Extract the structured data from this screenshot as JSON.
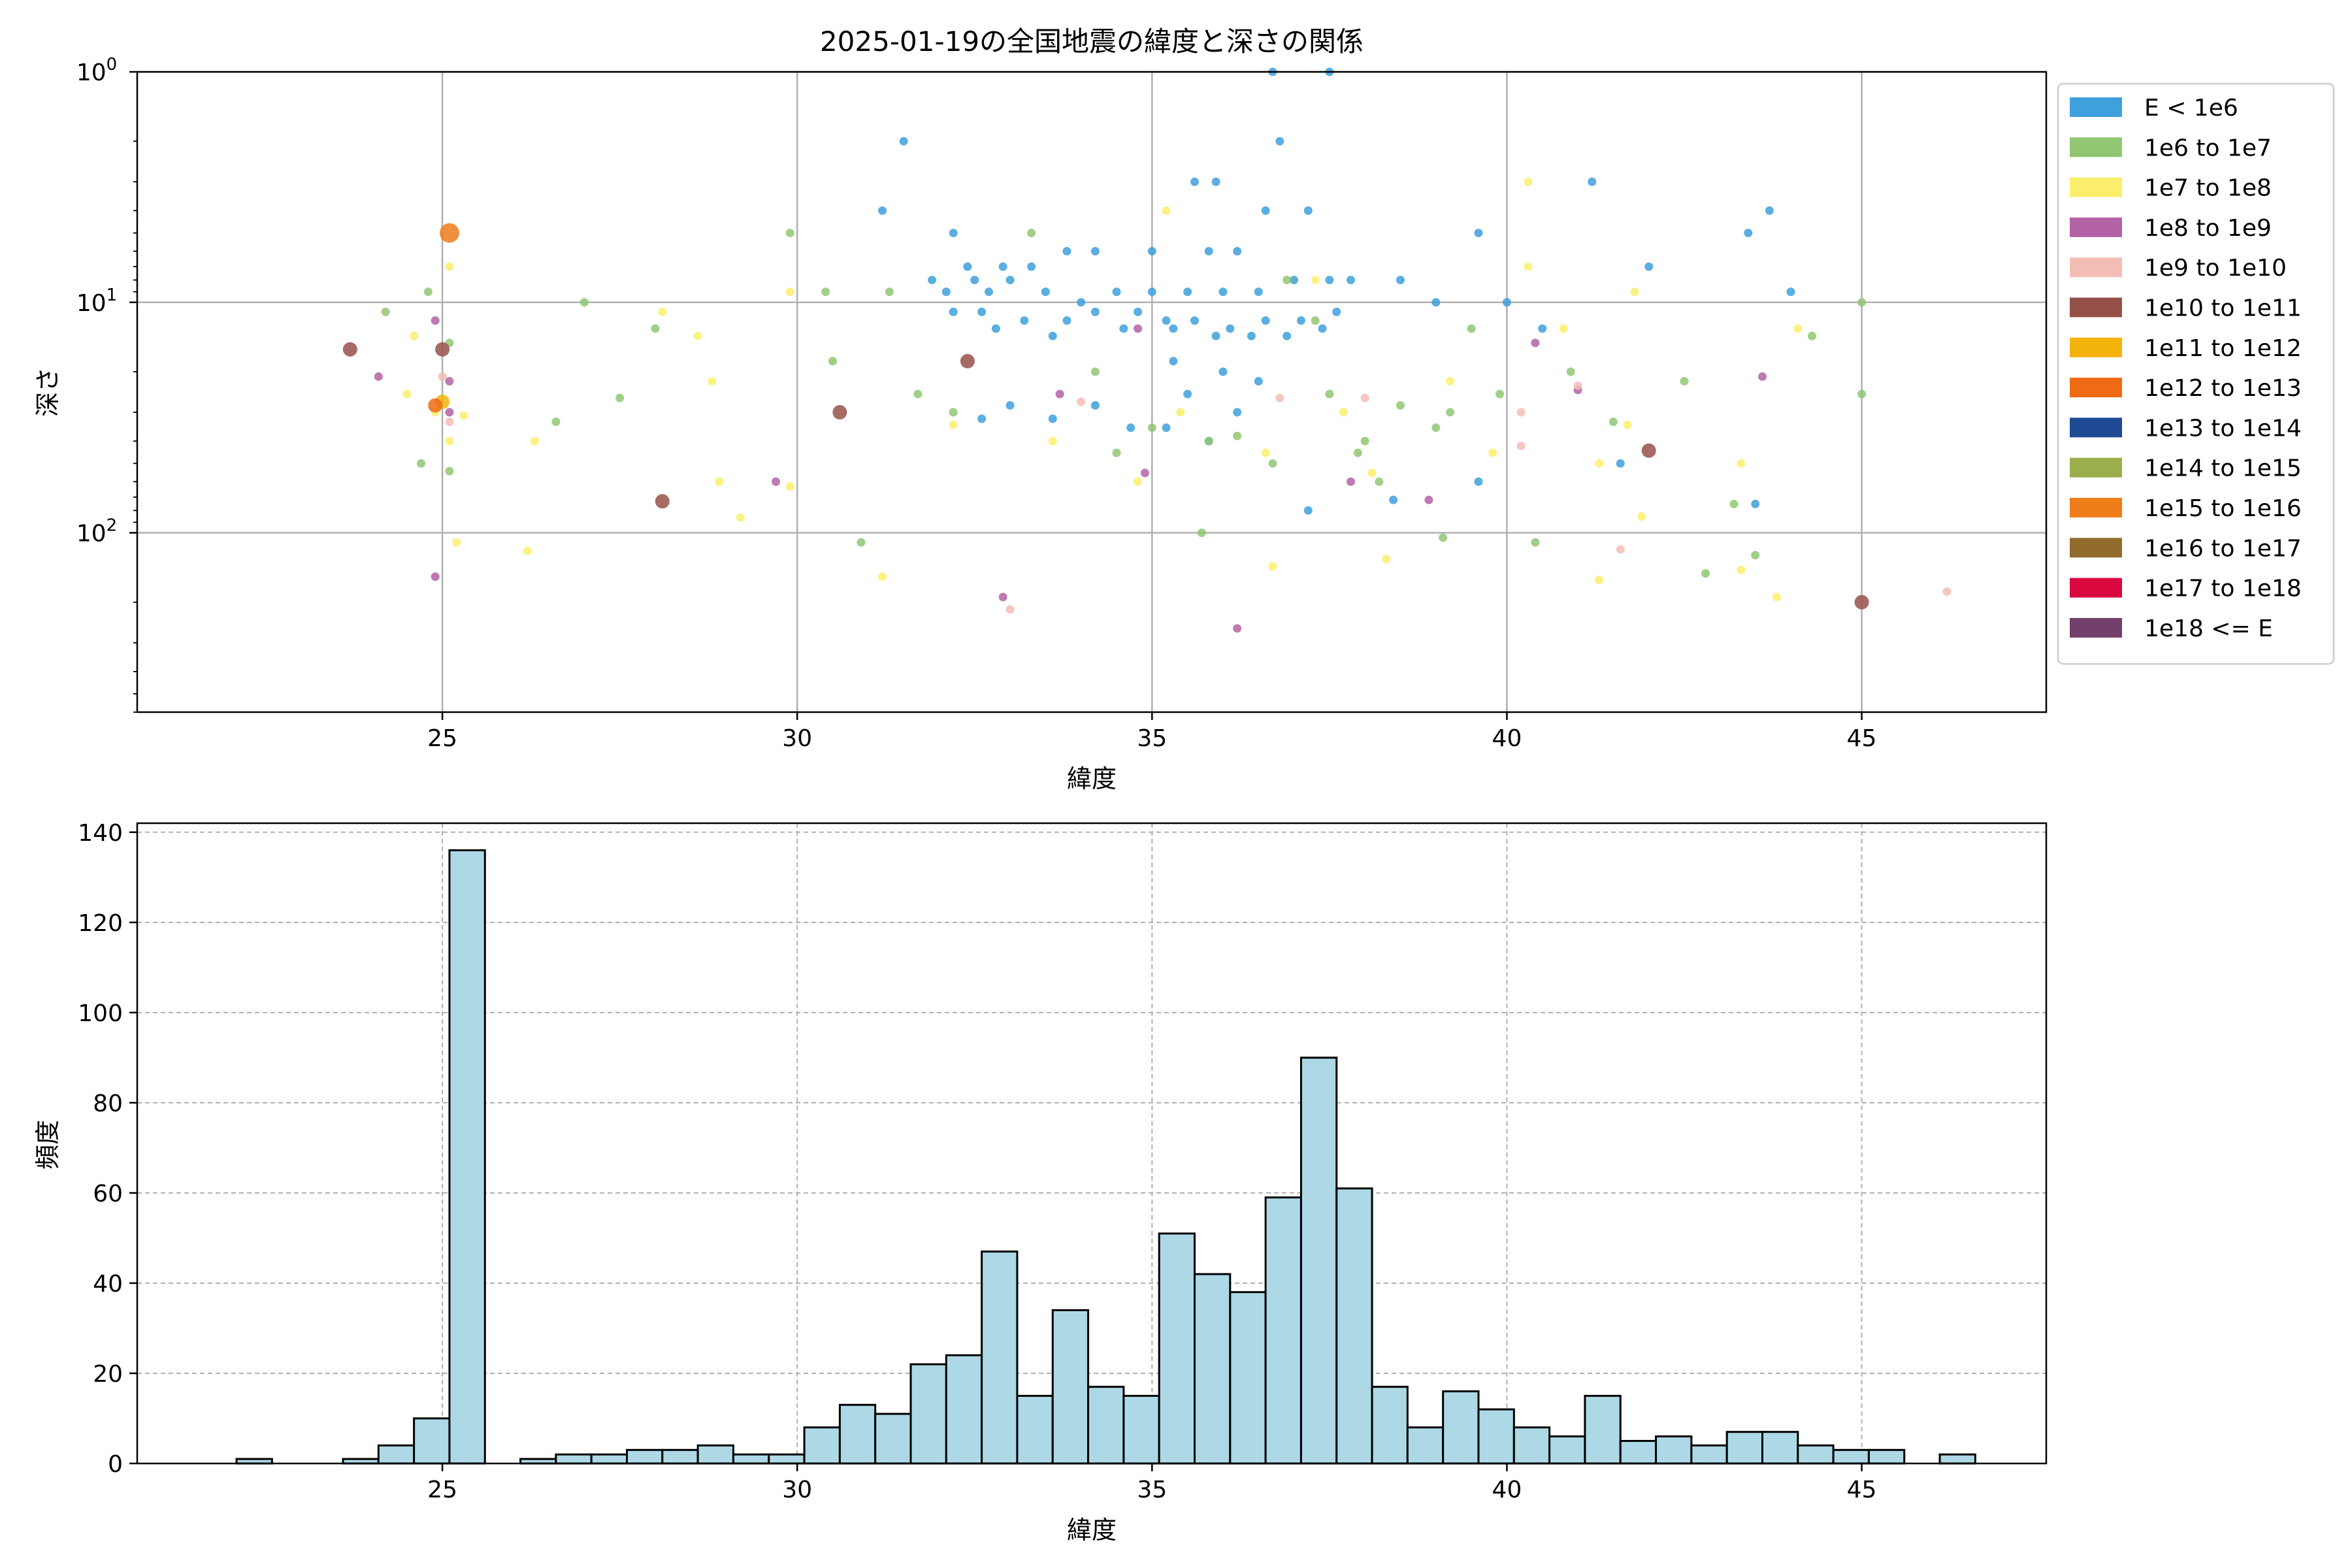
{
  "chart_data": [
    {
      "type": "scatter",
      "title": "2025-01-19の全国地震の緯度と深さの関係",
      "xlabel": "緯度",
      "ylabel": "深さ",
      "xlim": [
        20.7,
        47.6
      ],
      "ylim": [
        1,
        600
      ],
      "y_scale": "log",
      "y_inverted": true,
      "grid": true,
      "x_ticks": [
        25,
        30,
        35,
        40,
        45
      ],
      "y_ticks": [
        1,
        10,
        100
      ],
      "legend_position": "outside-right",
      "legend": [
        {
          "label": "E < 1e6",
          "color": "#3ea0dc"
        },
        {
          "label": "1e6 to 1e7",
          "color": "#91c773"
        },
        {
          "label": "1e7 to 1e8",
          "color": "#fbee6c"
        },
        {
          "label": "1e8 to 1e9",
          "color": "#b462a6"
        },
        {
          "label": "1e9 to 1e10",
          "color": "#f4bdb6"
        },
        {
          "label": "1e10 to 1e11",
          "color": "#955149"
        },
        {
          "label": "1e11 to 1e12",
          "color": "#f5b40c"
        },
        {
          "label": "1e12 to 1e13",
          "color": "#ef6a12"
        },
        {
          "label": "1e13 to 1e14",
          "color": "#1d4a93"
        },
        {
          "label": "1e14 to 1e15",
          "color": "#9aae4c"
        },
        {
          "label": "1e15 to 1e16",
          "color": "#ef7d1a"
        },
        {
          "label": "1e16 to 1e17",
          "color": "#926b2d"
        },
        {
          "label": "1e17 to 1e18",
          "color": "#d9083f"
        },
        {
          "label": "1e18 <= E",
          "color": "#723f6b"
        }
      ],
      "series": [
        {
          "name": "E < 1e6",
          "points": [
            [
              31.5,
              2
            ],
            [
              31.2,
              4
            ],
            [
              32.2,
              5
            ],
            [
              32.4,
              7
            ],
            [
              32.9,
              7
            ],
            [
              33.3,
              7
            ],
            [
              31.9,
              8
            ],
            [
              32.5,
              8
            ],
            [
              33,
              8
            ],
            [
              32.1,
              9
            ],
            [
              32.7,
              9
            ],
            [
              33.5,
              9
            ],
            [
              34,
              10
            ],
            [
              34.5,
              9
            ],
            [
              35,
              9
            ],
            [
              35.5,
              9
            ],
            [
              36,
              9
            ],
            [
              36.5,
              9
            ],
            [
              37,
              8
            ],
            [
              37.5,
              8
            ],
            [
              32.2,
              11
            ],
            [
              32.6,
              11
            ],
            [
              33.2,
              12
            ],
            [
              33.8,
              12
            ],
            [
              34.2,
              11
            ],
            [
              34.8,
              11
            ],
            [
              35.2,
              12
            ],
            [
              35.6,
              12
            ],
            [
              36.1,
              13
            ],
            [
              36.6,
              12
            ],
            [
              37.1,
              12
            ],
            [
              37.6,
              11
            ],
            [
              32.8,
              13
            ],
            [
              33.6,
              14
            ],
            [
              34.6,
              13
            ],
            [
              35.3,
              13
            ],
            [
              35.9,
              14
            ],
            [
              36.4,
              14
            ],
            [
              36.9,
              14
            ],
            [
              37.4,
              13
            ],
            [
              35.6,
              3
            ],
            [
              35.9,
              3
            ],
            [
              36.7,
              1
            ],
            [
              37.5,
              1
            ],
            [
              36.8,
              2
            ],
            [
              37.2,
              4
            ],
            [
              36.6,
              4
            ],
            [
              35.8,
              6
            ],
            [
              36.2,
              6
            ],
            [
              34.2,
              6
            ],
            [
              35,
              6
            ],
            [
              33.8,
              6
            ],
            [
              35.3,
              18
            ],
            [
              36,
              20
            ],
            [
              36.5,
              22
            ],
            [
              35.5,
              25
            ],
            [
              33,
              28
            ],
            [
              32.6,
              32
            ],
            [
              34.2,
              28
            ],
            [
              35.2,
              35
            ],
            [
              36.2,
              30
            ],
            [
              37.8,
              8
            ],
            [
              38.5,
              8
            ],
            [
              39,
              10
            ],
            [
              39.6,
              5
            ],
            [
              40,
              10
            ],
            [
              40.5,
              13
            ],
            [
              41.2,
              3
            ],
            [
              41.6,
              50
            ],
            [
              42,
              7
            ],
            [
              43.4,
              5
            ],
            [
              43.7,
              4
            ],
            [
              44,
              9
            ],
            [
              43.5,
              75
            ],
            [
              39.6,
              60
            ],
            [
              38.4,
              72
            ],
            [
              37.2,
              80
            ],
            [
              35.8,
              40
            ],
            [
              34.7,
              35
            ],
            [
              33.6,
              32
            ]
          ]
        },
        {
          "name": "1e6 to 1e7",
          "points": [
            [
              24.2,
              11
            ],
            [
              24.8,
              9
            ],
            [
              25.1,
              15
            ],
            [
              24.7,
              50
            ],
            [
              25.1,
              54
            ],
            [
              26.6,
              33
            ],
            [
              27,
              10
            ],
            [
              27.5,
              26
            ],
            [
              28,
              13
            ],
            [
              29.9,
              5
            ],
            [
              30.4,
              9
            ],
            [
              30.5,
              18
            ],
            [
              30.9,
              110
            ],
            [
              31.3,
              9
            ],
            [
              31.7,
              25
            ],
            [
              32.2,
              30
            ],
            [
              33.3,
              5
            ],
            [
              34.2,
              20
            ],
            [
              34.5,
              45
            ],
            [
              35,
              35
            ],
            [
              35.7,
              100
            ],
            [
              35.8,
              40
            ],
            [
              36.2,
              38
            ],
            [
              36.7,
              50
            ],
            [
              36.9,
              8
            ],
            [
              37.3,
              12
            ],
            [
              37.5,
              25
            ],
            [
              38,
              40
            ],
            [
              38.5,
              28
            ],
            [
              39,
              35
            ],
            [
              39.2,
              30
            ],
            [
              39.5,
              13
            ],
            [
              39.9,
              25
            ],
            [
              40.4,
              110
            ],
            [
              40.9,
              20
            ],
            [
              41.5,
              33
            ],
            [
              42.5,
              22
            ],
            [
              42.8,
              150
            ],
            [
              43.2,
              75
            ],
            [
              43.5,
              125
            ],
            [
              44.3,
              14
            ],
            [
              45,
              10
            ],
            [
              45,
              25
            ],
            [
              37.9,
              45
            ],
            [
              38.2,
              60
            ],
            [
              39.1,
              105
            ]
          ]
        },
        {
          "name": "1e7 to 1e8",
          "points": [
            [
              24.6,
              14
            ],
            [
              25.1,
              7
            ],
            [
              24.9,
              30
            ],
            [
              25.1,
              40
            ],
            [
              25.3,
              31
            ],
            [
              24.5,
              25
            ],
            [
              25.2,
              110
            ],
            [
              26.3,
              40
            ],
            [
              26.2,
              120
            ],
            [
              28.1,
              11
            ],
            [
              28.6,
              14
            ],
            [
              28.8,
              22
            ],
            [
              28.9,
              60
            ],
            [
              29.2,
              86
            ],
            [
              29.9,
              9
            ],
            [
              29.9,
              63
            ],
            [
              31.2,
              155
            ],
            [
              32.2,
              34
            ],
            [
              33.6,
              40
            ],
            [
              34.8,
              60
            ],
            [
              35.2,
              4
            ],
            [
              35.4,
              30
            ],
            [
              36.6,
              45
            ],
            [
              36.7,
              140
            ],
            [
              37.3,
              8
            ],
            [
              37.7,
              30
            ],
            [
              38.1,
              55
            ],
            [
              38.3,
              130
            ],
            [
              39.2,
              22
            ],
            [
              39.8,
              45
            ],
            [
              40.3,
              3
            ],
            [
              40.3,
              7
            ],
            [
              40.8,
              13
            ],
            [
              41.3,
              50
            ],
            [
              41.3,
              160
            ],
            [
              41.7,
              34
            ],
            [
              41.8,
              9
            ],
            [
              41.9,
              85
            ],
            [
              43.3,
              50
            ],
            [
              43.3,
              145
            ],
            [
              43.8,
              190
            ],
            [
              44.1,
              13
            ]
          ]
        },
        {
          "name": "1e8 to 1e9",
          "points": [
            [
              24.1,
              21
            ],
            [
              24.9,
              12
            ],
            [
              25.1,
              22
            ],
            [
              25.1,
              30
            ],
            [
              24.9,
              155
            ],
            [
              29.7,
              60
            ],
            [
              32.9,
              190
            ],
            [
              33.7,
              25
            ],
            [
              34.8,
              13
            ],
            [
              34.9,
              55
            ],
            [
              36.2,
              260
            ],
            [
              37.8,
              60
            ],
            [
              38.9,
              72
            ],
            [
              40.4,
              15
            ],
            [
              41,
              24
            ],
            [
              43.6,
              21
            ]
          ]
        },
        {
          "name": "1e9 to 1e10",
          "points": [
            [
              25,
              21
            ],
            [
              25.1,
              33
            ],
            [
              33,
              215
            ],
            [
              34,
              27
            ],
            [
              36.8,
              26
            ],
            [
              38,
              26
            ],
            [
              40.2,
              30
            ],
            [
              40.2,
              42
            ],
            [
              41,
              23
            ],
            [
              41.6,
              118
            ],
            [
              46.2,
              180
            ]
          ]
        },
        {
          "name": "1e10 to 1e11",
          "points": [
            [
              23.7,
              16
            ],
            [
              25,
              16
            ],
            [
              28.1,
              73
            ],
            [
              30.6,
              30
            ],
            [
              32.4,
              18
            ],
            [
              42,
              44
            ],
            [
              45,
              200
            ]
          ]
        },
        {
          "name": "1e11 to 1e12",
          "points": [
            [
              25,
              27
            ]
          ]
        },
        {
          "name": "1e12 to 1e13",
          "points": [
            [
              24.9,
              28
            ]
          ]
        },
        {
          "name": "1e15 to 1e16",
          "points": [
            [
              25.1,
              5
            ]
          ]
        }
      ]
    },
    {
      "type": "bar",
      "title": "",
      "xlabel": "緯度",
      "ylabel": "頻度",
      "xlim": [
        20.7,
        47.6
      ],
      "ylim": [
        0,
        142
      ],
      "x_ticks": [
        25,
        30,
        35,
        40,
        45
      ],
      "y_ticks": [
        0,
        20,
        40,
        60,
        80,
        100,
        120,
        140
      ],
      "grid": true,
      "bar_color": "#add8e6",
      "bin_width": 0.5,
      "bin_left_edges": [
        22.1,
        22.6,
        23.1,
        23.6,
        24.1,
        24.6,
        25.1,
        25.6,
        26.1,
        26.6,
        27.1,
        27.6,
        28.1,
        28.6,
        29.1,
        29.6,
        30.1,
        30.6,
        31.1,
        31.6,
        32.1,
        32.6,
        33.1,
        33.6,
        34.1,
        34.6,
        35.1,
        35.6,
        36.1,
        36.6,
        37.1,
        37.6,
        38.1,
        38.6,
        39.1,
        39.6,
        40.1,
        40.6,
        41.1,
        41.6,
        42.1,
        42.6,
        43.1,
        43.6,
        44.1,
        44.6,
        45.1,
        45.6,
        46.1
      ],
      "values": [
        1,
        0,
        0,
        1,
        4,
        10,
        136,
        0,
        1,
        2,
        2,
        3,
        3,
        4,
        2,
        2,
        8,
        13,
        11,
        22,
        24,
        47,
        15,
        34,
        17,
        15,
        51,
        42,
        38,
        59,
        90,
        61,
        17,
        8,
        16,
        12,
        8,
        6,
        15,
        5,
        6,
        4,
        7,
        7,
        4,
        3,
        3,
        0,
        2
      ]
    }
  ]
}
